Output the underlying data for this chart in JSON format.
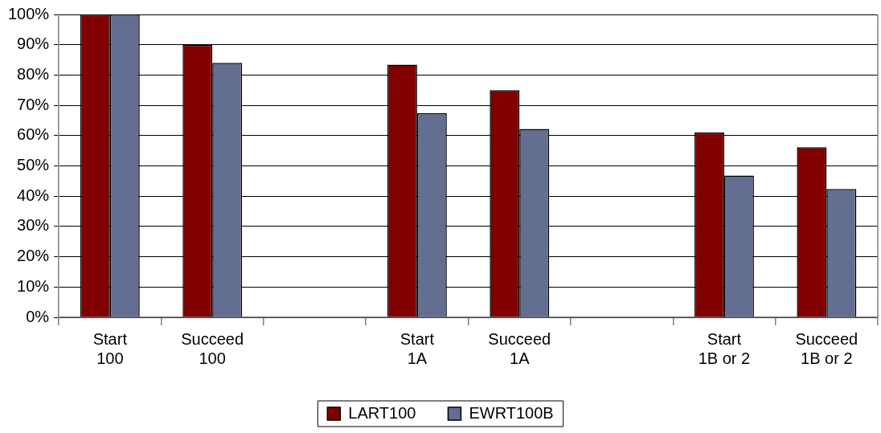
{
  "chart_data": {
    "type": "bar",
    "categories": [
      "Start 100",
      "Succeed 100",
      null,
      "Start 1A",
      "Succeed 1A",
      null,
      "Start 1B or 2",
      "Succeed 1B or 2"
    ],
    "series": [
      {
        "name": "LART100",
        "color": "#800000",
        "values": [
          100,
          90,
          null,
          83.4,
          75,
          null,
          61.1,
          56.2
        ]
      },
      {
        "name": "EWRT100B",
        "color": "#646e91",
        "values": [
          100,
          84,
          null,
          67.4,
          62.2,
          null,
          46.8,
          42.4
        ]
      }
    ],
    "ylim": [
      0,
      100
    ],
    "yticks": [
      {
        "value": 0,
        "label": "0%"
      },
      {
        "value": 10,
        "label": "10%"
      },
      {
        "value": 20,
        "label": "20%"
      },
      {
        "value": 30,
        "label": "30%"
      },
      {
        "value": 40,
        "label": "40%"
      },
      {
        "value": 50,
        "label": "50%"
      },
      {
        "value": 60,
        "label": "60%"
      },
      {
        "value": 70,
        "label": "70%"
      },
      {
        "value": 80,
        "label": "80%"
      },
      {
        "value": 90,
        "label": "90%"
      },
      {
        "value": 100,
        "label": "100%"
      }
    ],
    "grid": "y",
    "legend": "bottom"
  }
}
